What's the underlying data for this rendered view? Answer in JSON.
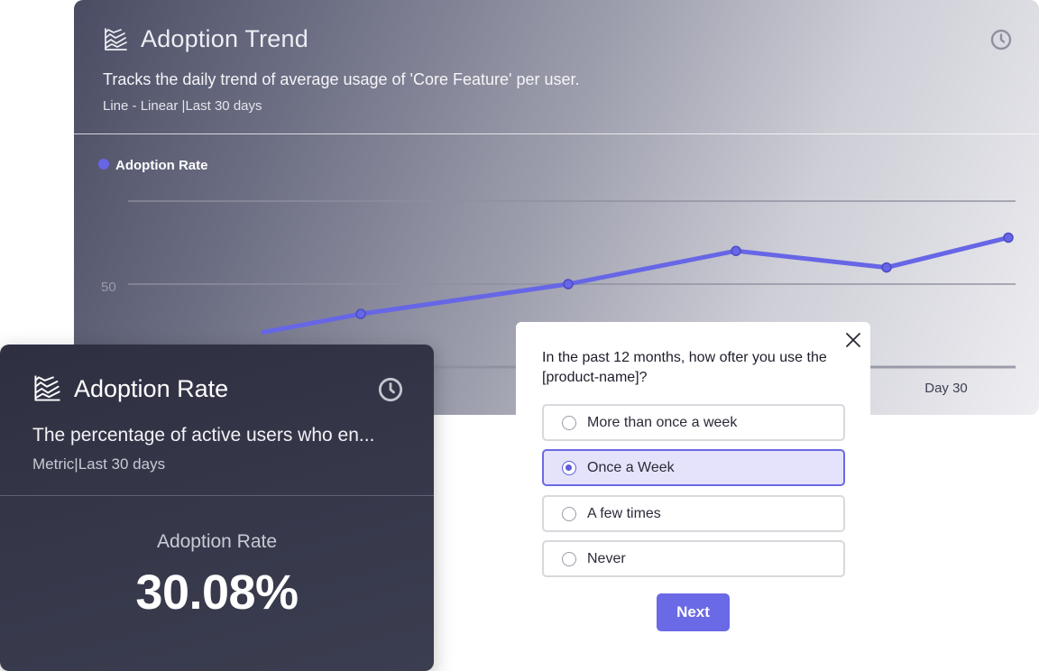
{
  "trend_card": {
    "title": "Adoption Trend",
    "description": "Tracks the daily trend of average usage of 'Core Feature' per user.",
    "meta": "Line - Linear  |Last 30 days",
    "icon": "chart-lines-icon",
    "clock_icon": "clock-icon"
  },
  "chart_data": {
    "type": "line",
    "series": [
      {
        "name": "Adoption Rate",
        "color": "#6766e6",
        "values": [
          21,
          32,
          50,
          70,
          60,
          78
        ]
      }
    ],
    "y_ticks": [
      "",
      "50"
    ],
    "x_ticks": [
      "",
      "Day 30"
    ],
    "grid": true,
    "legend": "top-left"
  },
  "metric_card": {
    "title": "Adoption Rate",
    "description": "The percentage of active users who  en...",
    "meta": "Metric|Last 30 days",
    "label": "Adoption Rate",
    "value": "30.08%",
    "icon": "chart-lines-icon",
    "clock_icon": "clock-icon"
  },
  "survey": {
    "question": "In the past 12 months, how ofter you use the [product-name]?",
    "options": [
      {
        "label": "More than once a week",
        "selected": false
      },
      {
        "label": "Once a Week",
        "selected": true
      },
      {
        "label": "A few times",
        "selected": false
      },
      {
        "label": "Never",
        "selected": false
      }
    ],
    "next_label": "Next",
    "accent": "#6a69e6"
  }
}
